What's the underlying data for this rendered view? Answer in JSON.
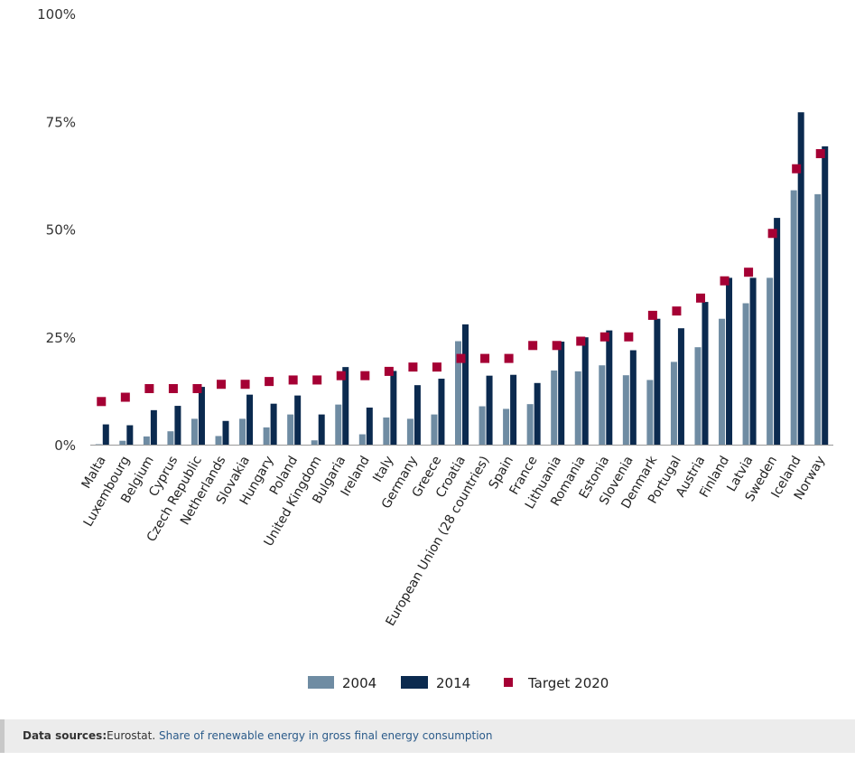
{
  "chart_data": {
    "type": "bar",
    "categories": [
      "Malta",
      "Luxembourg",
      "Belgium",
      "Cyprus",
      "Czech Republic",
      "Netherlands",
      "Slovakia",
      "Hungary",
      "Poland",
      "United Kingdom",
      "Bulgaria",
      "Ireland",
      "Italy",
      "Germany",
      "Greece",
      "Croatia",
      "European Union (28 countries)",
      "Spain",
      "France",
      "Lithuania",
      "Romania",
      "Estonia",
      "Slovenia",
      "Denmark",
      "Portugal",
      "Austria",
      "Finland",
      "Latvia",
      "Sweden",
      "Iceland",
      "Norway"
    ],
    "series": [
      {
        "name": "2004",
        "type": "bar",
        "color": "#6f8ca3",
        "values": [
          0.1,
          0.9,
          1.9,
          3.1,
          6.0,
          2.0,
          6.0,
          4.0,
          7.0,
          1.0,
          9.3,
          2.4,
          6.3,
          6.0,
          7.0,
          24.0,
          8.9,
          8.3,
          9.4,
          17.2,
          17.0,
          18.4,
          16.1,
          15.0,
          19.2,
          22.6,
          29.2,
          32.8,
          38.7,
          59.0,
          58.1
        ]
      },
      {
        "name": "2014",
        "type": "bar",
        "color": "#0b2a4f",
        "values": [
          4.7,
          4.5,
          8.0,
          9.0,
          13.4,
          5.5,
          11.6,
          9.5,
          11.4,
          7.0,
          18.0,
          8.6,
          17.1,
          13.8,
          15.3,
          27.9,
          16.0,
          16.2,
          14.3,
          23.9,
          24.9,
          26.5,
          21.9,
          29.2,
          27.0,
          33.1,
          38.7,
          38.7,
          52.6,
          77.1,
          69.2
        ]
      },
      {
        "name": "Target 2020",
        "type": "marker",
        "color": "#a50034",
        "values": [
          10,
          11,
          13,
          13,
          13,
          14,
          14,
          14.65,
          15,
          15,
          16,
          16,
          17,
          18,
          18,
          20,
          20,
          20,
          23,
          23,
          24,
          25,
          25,
          30,
          31,
          34,
          38,
          40,
          49,
          64,
          67.5
        ]
      }
    ],
    "ylim": [
      0,
      100
    ],
    "yticks": [
      "0%",
      "25%",
      "50%",
      "75%",
      "100%"
    ],
    "ytick_values": [
      0,
      25,
      50,
      75,
      100
    ],
    "legend_position": "bottom-center",
    "grid": false
  },
  "legend": {
    "items": [
      "2004",
      "2014",
      "Target 2020"
    ]
  },
  "footer": {
    "label": "Data sources:",
    "source": "Eurostat.",
    "link_text": "Share of renewable energy in gross final energy consumption"
  }
}
